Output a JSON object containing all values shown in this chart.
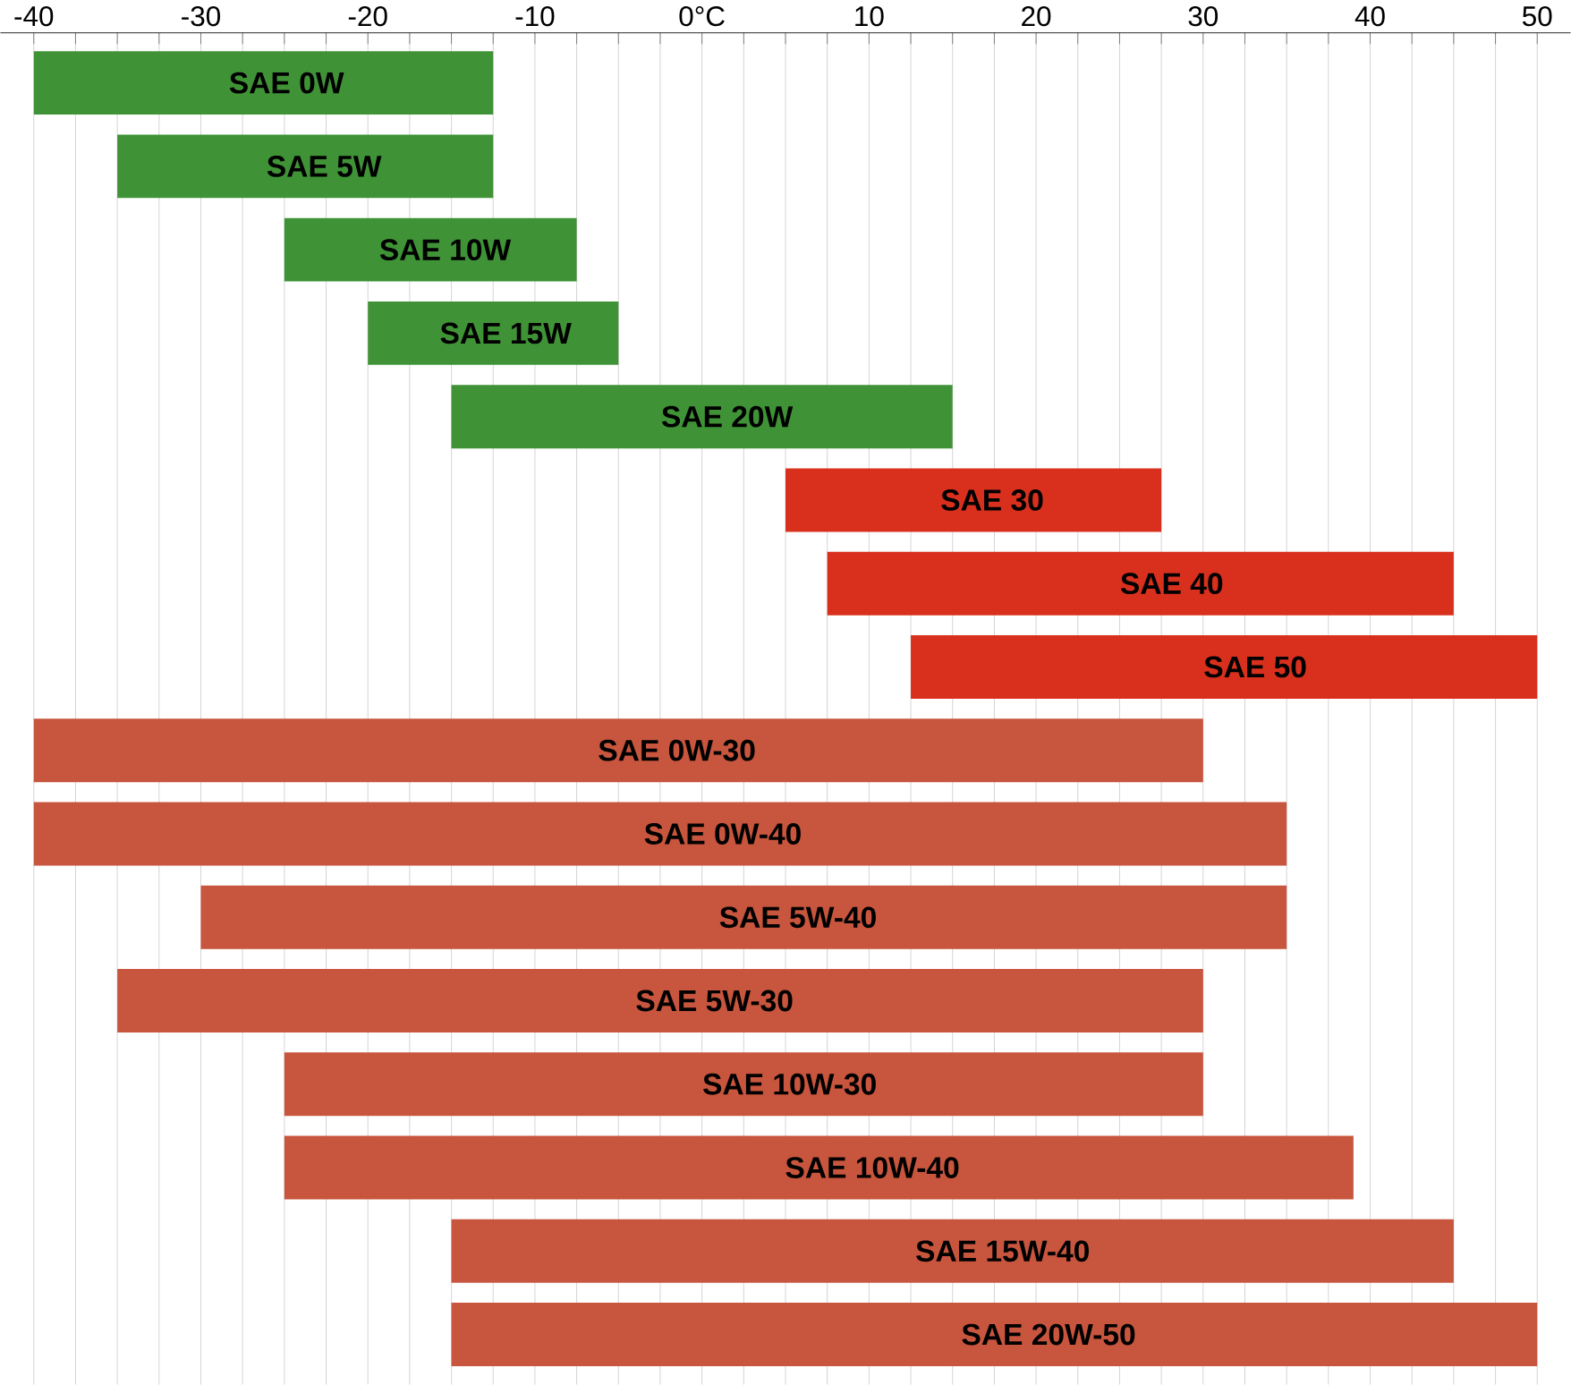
{
  "chart_data": {
    "type": "bar",
    "orientation": "horizontal",
    "categories": [
      "SAE 0W",
      "SAE 5W",
      "SAE 10W",
      "SAE 15W",
      "SAE 20W",
      "SAE 30",
      "SAE 40",
      "SAE 50",
      "SAE 0W-30",
      "SAE 0W-40",
      "SAE 5W-40",
      "SAE 5W-30",
      "SAE 10W-30",
      "SAE 10W-40",
      "SAE 15W-40",
      "SAE 20W-50"
    ],
    "base": [
      -40,
      -35,
      -25,
      -20,
      -15,
      5,
      7.5,
      12.5,
      -40,
      -40,
      -30,
      -35,
      -25,
      -25,
      -15,
      -15
    ],
    "values": [
      27.5,
      22.5,
      17.5,
      15,
      30,
      22.5,
      37.5,
      37.5,
      70,
      75,
      65,
      65,
      55,
      64,
      60,
      65
    ],
    "colors": [
      "#3f9336",
      "#3f9336",
      "#3f9336",
      "#3f9336",
      "#3f9336",
      "#d9301e",
      "#d9301e",
      "#d9301e",
      "#c8553d",
      "#c8553d",
      "#c8553d",
      "#c8553d",
      "#c8553d",
      "#c8553d",
      "#c8553d",
      "#c8553d"
    ],
    "xlim": [
      -42,
      52
    ],
    "xticks": [
      -40,
      {
        "value": -37.5,
        "label": null
      },
      {
        "value": -35,
        "label": null
      },
      {
        "value": -32.5,
        "label": null
      },
      -30,
      {
        "value": -27.5,
        "label": null
      },
      {
        "value": -25,
        "label": null
      },
      {
        "value": -22.5,
        "label": null
      },
      -20,
      {
        "value": -17.5,
        "label": null
      },
      {
        "value": -15,
        "label": null
      },
      {
        "value": -12.5,
        "label": null
      },
      -10,
      {
        "value": -7.5,
        "label": null
      },
      {
        "value": -5,
        "label": null
      },
      {
        "value": -2.5,
        "label": null
      },
      {
        "value": 0,
        "label": "0°C"
      },
      {
        "value": 2.5,
        "label": null
      },
      {
        "value": 5,
        "label": null
      },
      {
        "value": 7.5,
        "label": null
      },
      10,
      {
        "value": 12.5,
        "label": null
      },
      {
        "value": 15,
        "label": null
      },
      {
        "value": 17.5,
        "label": null
      },
      20,
      {
        "value": 22.5,
        "label": null
      },
      {
        "value": 25,
        "label": null
      },
      {
        "value": 27.5,
        "label": null
      },
      30,
      {
        "value": 32.5,
        "label": null
      },
      {
        "value": 35,
        "label": null
      },
      {
        "value": 37.5,
        "label": null
      },
      40,
      {
        "value": 42.5,
        "label": null
      },
      {
        "value": 45,
        "label": null
      },
      {
        "value": 47.5,
        "label": null
      },
      50
    ],
    "grid": "x"
  }
}
